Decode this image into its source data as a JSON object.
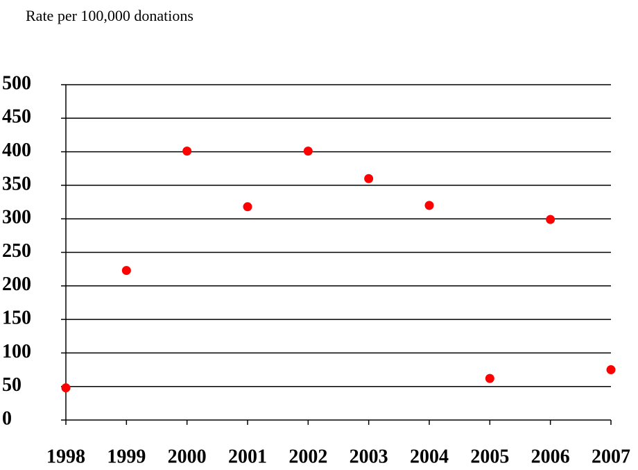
{
  "chart_data": {
    "type": "line",
    "title": "Rate per 100,000 donations",
    "categories": [
      "1998",
      "1999",
      "2000",
      "2001",
      "2002",
      "2003",
      "2004",
      "2005",
      "2006",
      "2007"
    ],
    "series": [
      {
        "color": "#000000",
        "marker_color": "#ff0000",
        "values": [
          48,
          223,
          401,
          318,
          401,
          360,
          320,
          62,
          299,
          75
        ]
      }
    ],
    "ylim": [
      0,
      500
    ],
    "yticks": [
      0,
      50,
      100,
      150,
      200,
      250,
      300,
      350,
      400,
      450,
      500
    ],
    "grid": true
  }
}
